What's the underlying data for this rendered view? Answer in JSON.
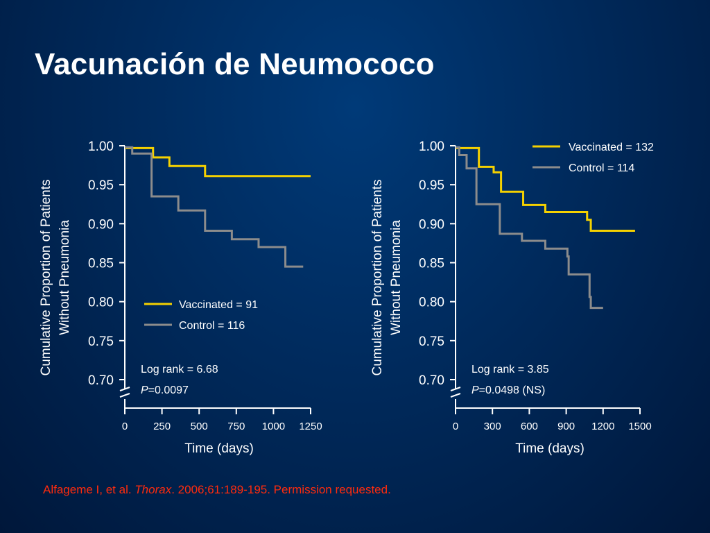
{
  "slide": {
    "title": "Vacunación de Neumococo"
  },
  "citation": {
    "authors": "Alfageme I, et al. ",
    "journal": "Thorax",
    "rest": ". 2006;61:189-195. Permission requested."
  },
  "colors": {
    "vaccinated": "#f5d100",
    "control": "#8c8c8c",
    "axis": "#ffffff",
    "citation": "#ff2b0d"
  },
  "chart_data": [
    {
      "type": "line",
      "step": true,
      "ylabel_lines": [
        "Cumulative Proportion of Patients",
        "Without Pneumonia"
      ],
      "xlabel": "Time (days)",
      "y_ticks": [
        "1.00",
        "0.95",
        "0.90",
        "0.85",
        "0.80",
        "0.75",
        "0.70"
      ],
      "ylim": [
        0.7,
        1.0
      ],
      "x_ticks": [
        "0",
        "250",
        "500",
        "750",
        "1000",
        "1250"
      ],
      "xlim": [
        0,
        1250
      ],
      "axis_break": true,
      "legend_placement": "bottom-center",
      "series": [
        {
          "name": "Vaccinated = 91",
          "color_key": "vaccinated",
          "x": [
            0,
            190,
            300,
            540,
            1250
          ],
          "y": [
            0.997,
            0.985,
            0.974,
            0.961,
            0.961
          ]
        },
        {
          "name": "Control = 116",
          "color_key": "control",
          "x": [
            0,
            50,
            180,
            360,
            540,
            720,
            900,
            1080,
            1200
          ],
          "y": [
            0.998,
            0.99,
            0.935,
            0.917,
            0.891,
            0.88,
            0.87,
            0.845,
            0.845
          ]
        }
      ],
      "annotations": {
        "log_rank": "Log rank = 6.68",
        "p_label": "P",
        "p_value": "=0.0097"
      }
    },
    {
      "type": "line",
      "step": true,
      "ylabel_lines": [
        "Cumulative Proportion of Patients",
        "Without Pneumonia"
      ],
      "xlabel": "Time (days)",
      "y_ticks": [
        "1.00",
        "0.95",
        "0.90",
        "0.85",
        "0.80",
        "0.75",
        "0.70"
      ],
      "ylim": [
        0.7,
        1.0
      ],
      "x_ticks": [
        "0",
        "300",
        "600",
        "900",
        "1200",
        "1500"
      ],
      "xlim": [
        0,
        1500
      ],
      "axis_break": true,
      "legend_placement": "top-right",
      "series": [
        {
          "name": "Vaccinated = 132",
          "color_key": "vaccinated",
          "x": [
            0,
            190,
            310,
            370,
            550,
            730,
            1070,
            1100,
            1460
          ],
          "y": [
            0.997,
            0.973,
            0.966,
            0.941,
            0.924,
            0.915,
            0.905,
            0.891,
            0.891
          ]
        },
        {
          "name": "Control = 114",
          "color_key": "control",
          "x": [
            0,
            30,
            90,
            170,
            360,
            540,
            730,
            910,
            920,
            1090,
            1100,
            1200
          ],
          "y": [
            0.998,
            0.988,
            0.971,
            0.925,
            0.887,
            0.878,
            0.868,
            0.858,
            0.835,
            0.806,
            0.792,
            0.792
          ]
        }
      ],
      "annotations": {
        "log_rank": "Log rank = 3.85",
        "p_label": "P",
        "p_value": "=0.0498 (NS)"
      }
    }
  ]
}
